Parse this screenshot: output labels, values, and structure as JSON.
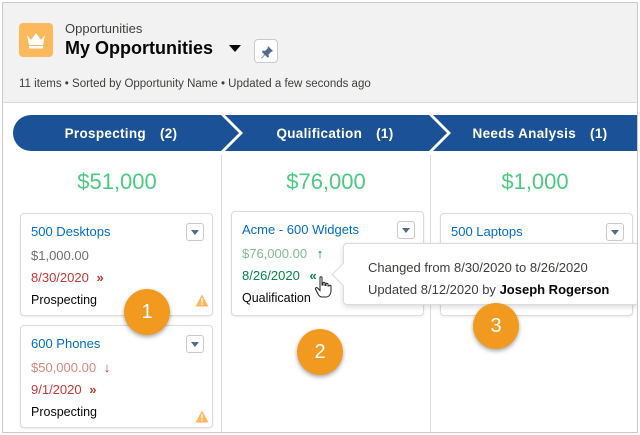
{
  "header": {
    "object_label": "Opportunities",
    "view_title": "My Opportunities",
    "status_line": "11 items • Sorted by Opportunity Name • Updated a few seconds ago",
    "icon": "crown-icon"
  },
  "path": {
    "stages": [
      {
        "label": "Prospecting",
        "count": "(2)"
      },
      {
        "label": "Qualification",
        "count": "(1)"
      },
      {
        "label": "Needs Analysis",
        "count": "(1)"
      }
    ]
  },
  "columns": [
    {
      "total": "$51,000",
      "cards": [
        {
          "name": "500 Desktops",
          "amount": "$1,000.00",
          "date": "8/30/2020",
          "date_icon": "»",
          "stage": "Prospecting",
          "warning": true
        },
        {
          "name": "600 Phones",
          "amount": "$50,000.00",
          "amount_icon": "↓",
          "date": "9/1/2020",
          "date_icon": "»",
          "stage": "Prospecting",
          "warning": true
        }
      ]
    },
    {
      "total": "$76,000",
      "cards": [
        {
          "name": "Acme - 600 Widgets",
          "amount": "$76,000.00",
          "amount_icon": "↑",
          "date": "8/26/2020",
          "date_icon": "«",
          "stage": "Qualification"
        }
      ]
    },
    {
      "total": "$1,000",
      "cards": [
        {
          "name": "500 Laptops"
        }
      ]
    }
  ],
  "tooltip": {
    "line1": "Changed from 8/30/2020 to 8/26/2020",
    "line2_prefix": "Updated 8/12/2020 by ",
    "line2_user": "Joseph Rogerson"
  },
  "callouts": [
    "1",
    "2",
    "3"
  ],
  "colors": {
    "path_blue": "#1b5297",
    "total_green": "#4bca81",
    "link_blue": "#006dcc",
    "warning_yellow": "#ffb75d",
    "callout_orange": "#f29a1f"
  }
}
